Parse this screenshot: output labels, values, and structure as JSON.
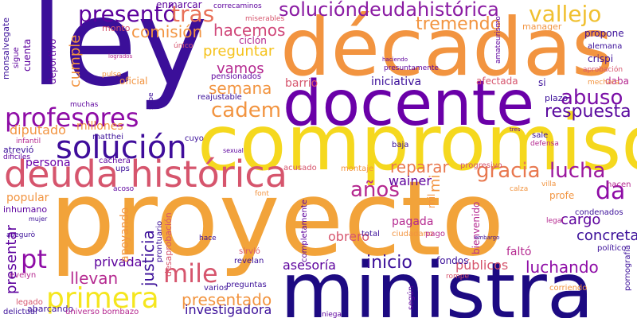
{
  "words": [
    {
      "text": "ley",
      "color": "#3b0f99",
      "size": 150,
      "rotate": 0
    },
    {
      "text": "décadas",
      "color": "#f29440",
      "size": 100,
      "rotate": 0
    },
    {
      "text": "docente",
      "color": "#6a00a8",
      "size": 78,
      "rotate": 0
    },
    {
      "text": "compromiso",
      "color": "#f5d81e",
      "size": 96,
      "rotate": 0
    },
    {
      "text": "proyecto",
      "color": "#f2a33a",
      "size": 130,
      "rotate": 0
    },
    {
      "text": "ministra",
      "color": "#1d0a82",
      "size": 96,
      "rotate": 0
    },
    {
      "text": "deuda histórica",
      "color": "#d6556d",
      "size": 46,
      "rotate": 0
    },
    {
      "text": "solución",
      "color": "#3f0d9b",
      "size": 40,
      "rotate": 0
    },
    {
      "text": "profesores",
      "color": "#8e0ca6",
      "size": 32,
      "rotate": 0
    },
    {
      "text": "presentó",
      "color": "#5c019d",
      "size": 28,
      "rotate": 0
    },
    {
      "text": "tras",
      "color": "#e87058",
      "size": 28,
      "rotate": 0
    },
    {
      "text": "solucióndeudahistórica",
      "color": "#8a1ba3",
      "size": 24,
      "rotate": 0
    },
    {
      "text": "vallejo",
      "color": "#f0c030",
      "size": 28,
      "rotate": 0
    },
    {
      "text": "tremendo",
      "color": "#f29440",
      "size": 22,
      "rotate": 0
    },
    {
      "text": "comisión",
      "color": "#f29440",
      "size": 20,
      "rotate": 0
    },
    {
      "text": "hacemos",
      "color": "#d0487a",
      "size": 20,
      "rotate": 0
    },
    {
      "text": "preguntar",
      "color": "#f5c21c",
      "size": 18,
      "rotate": 0
    },
    {
      "text": "vamos",
      "color": "#b52990",
      "size": 18,
      "rotate": 0
    },
    {
      "text": "semana",
      "color": "#f29440",
      "size": 20,
      "rotate": 0
    },
    {
      "text": "cadem",
      "color": "#f29440",
      "size": 26,
      "rotate": 0
    },
    {
      "text": "abuso",
      "color": "#7a0ea6",
      "size": 26,
      "rotate": 0
    },
    {
      "text": "respuesta",
      "color": "#5a0a9f",
      "size": 22,
      "rotate": 0
    },
    {
      "text": "lucha",
      "color": "#9c179e",
      "size": 26,
      "rotate": 0
    },
    {
      "text": "gracia",
      "color": "#e8784f",
      "size": 26,
      "rotate": 0
    },
    {
      "text": "reparar",
      "color": "#e8784f",
      "size": 20,
      "rotate": 0
    },
    {
      "text": "da",
      "color": "#8e0ca6",
      "size": 30,
      "rotate": 0
    },
    {
      "text": "años",
      "color": "#b52990",
      "size": 26,
      "rotate": 0
    },
    {
      "text": "wainer",
      "color": "#5c019d",
      "size": 16,
      "rotate": 0
    },
    {
      "text": "mile",
      "color": "#d6556d",
      "size": 32,
      "rotate": 0
    },
    {
      "text": "primera",
      "color": "#f5e61e",
      "size": 36,
      "rotate": 0
    },
    {
      "text": "pt",
      "color": "#8e0ca6",
      "size": 32,
      "rotate": 0
    },
    {
      "text": "llevan",
      "color": "#b52990",
      "size": 20,
      "rotate": 0
    },
    {
      "text": "presentado",
      "color": "#f29440",
      "size": 20,
      "rotate": 0
    },
    {
      "text": "investigadora",
      "color": "#3b0f99",
      "size": 16,
      "rotate": 0
    },
    {
      "text": "asesoría",
      "color": "#5c019d",
      "size": 16,
      "rotate": 0
    },
    {
      "text": "inicio",
      "color": "#3b0f99",
      "size": 22,
      "rotate": 0
    },
    {
      "text": "luchando",
      "color": "#8e0ca6",
      "size": 20,
      "rotate": 0
    },
    {
      "text": "públicos",
      "color": "#d6556d",
      "size": 16,
      "rotate": 0
    },
    {
      "text": "obrero",
      "color": "#d6556d",
      "size": 16,
      "rotate": 0
    },
    {
      "text": "pagada",
      "color": "#b52990",
      "size": 14,
      "rotate": 0
    },
    {
      "text": "concreta",
      "color": "#3b0f99",
      "size": 18,
      "rotate": 0
    },
    {
      "text": "cargo",
      "color": "#5c019d",
      "size": 18,
      "rotate": 0
    },
    {
      "text": "privada",
      "color": "#5c019d",
      "size": 16,
      "rotate": 0
    },
    {
      "text": "iniciativa",
      "color": "#3b0f99",
      "size": 14,
      "rotate": 0
    },
    {
      "text": "barrio",
      "color": "#d6556d",
      "size": 14,
      "rotate": 0
    },
    {
      "text": "diputado",
      "color": "#f29440",
      "size": 16,
      "rotate": 0
    },
    {
      "text": "millones",
      "color": "#f29440",
      "size": 14,
      "rotate": 0
    },
    {
      "text": "persona",
      "color": "#6a00a8",
      "size": 14,
      "rotate": 0
    },
    {
      "text": "popular",
      "color": "#f29440",
      "size": 14,
      "rotate": 0
    },
    {
      "text": "inhumano",
      "color": "#5c019d",
      "size": 11,
      "rotate": 0
    },
    {
      "text": "enmarcar",
      "color": "#5c019d",
      "size": 12,
      "rotate": 0
    },
    {
      "text": "monto",
      "color": "#d6556d",
      "size": 11,
      "rotate": 0
    },
    {
      "text": "oficial",
      "color": "#f29440",
      "size": 12,
      "rotate": 0
    },
    {
      "text": "ciclón",
      "color": "#b52990",
      "size": 12,
      "rotate": 0
    },
    {
      "text": "pensionados",
      "color": "#5c019d",
      "size": 10,
      "rotate": 0
    },
    {
      "text": "reajustable",
      "color": "#3b0f99",
      "size": 10,
      "rotate": 0
    },
    {
      "text": "matthei",
      "color": "#3b0f99",
      "size": 10,
      "rotate": 0
    },
    {
      "text": "atrevió",
      "color": "#3b0f99",
      "size": 11,
      "rotate": 0
    },
    {
      "text": "cachera",
      "color": "#5c019d",
      "size": 10,
      "rotate": 0
    },
    {
      "text": "ups",
      "color": "#3b0f99",
      "size": 10,
      "rotate": 0
    },
    {
      "text": "acusado",
      "color": "#d6556d",
      "size": 10,
      "rotate": 0
    },
    {
      "text": "montaje",
      "color": "#f29440",
      "size": 10,
      "rotate": 0
    },
    {
      "text": "progresivo",
      "color": "#d6556d",
      "size": 10,
      "rotate": 0
    },
    {
      "text": "baja",
      "color": "#3b0f99",
      "size": 10,
      "rotate": 0
    },
    {
      "text": "sale",
      "color": "#3b0f99",
      "size": 10,
      "rotate": 0
    },
    {
      "text": "defensa",
      "color": "#b52990",
      "size": 9,
      "rotate": 0
    },
    {
      "text": "plazo",
      "color": "#3b0f99",
      "size": 11,
      "rotate": 0
    },
    {
      "text": "si",
      "color": "#3b0f99",
      "size": 12,
      "rotate": 0
    },
    {
      "text": "afectada",
      "color": "#d6556d",
      "size": 12,
      "rotate": 0
    },
    {
      "text": "daba",
      "color": "#b52990",
      "size": 12,
      "rotate": 0
    },
    {
      "text": "crispi",
      "color": "#3b0f99",
      "size": 12,
      "rotate": 0
    },
    {
      "text": "alemana",
      "color": "#3b0f99",
      "size": 10,
      "rotate": 0
    },
    {
      "text": "propone",
      "color": "#3b0f99",
      "size": 12,
      "rotate": 0
    },
    {
      "text": "manager",
      "color": "#f29440",
      "size": 11,
      "rotate": 0
    },
    {
      "text": "hacen",
      "color": "#b52990",
      "size": 10,
      "rotate": 0
    },
    {
      "text": "profe",
      "color": "#f29440",
      "size": 12,
      "rotate": 0
    },
    {
      "text": "condenados",
      "color": "#3b0f99",
      "size": 10,
      "rotate": 0
    },
    {
      "text": "político",
      "color": "#3b0f99",
      "size": 10,
      "rotate": 0
    },
    {
      "text": "faltó",
      "color": "#b52990",
      "size": 14,
      "rotate": 0
    },
    {
      "text": "ciudadano",
      "color": "#f29440",
      "size": 10,
      "rotate": 0
    },
    {
      "text": "pago",
      "color": "#b52990",
      "size": 10,
      "rotate": 0
    },
    {
      "text": "legal",
      "color": "#b52990",
      "size": 9,
      "rotate": 0
    },
    {
      "text": "villa",
      "color": "#f29440",
      "size": 9,
      "rotate": 0
    },
    {
      "text": "calza",
      "color": "#f29440",
      "size": 9,
      "rotate": 0
    },
    {
      "text": "corriendo",
      "color": "#f29440",
      "size": 10,
      "rotate": 0
    },
    {
      "text": "mechera",
      "color": "#f29440",
      "size": 9,
      "rotate": 0
    },
    {
      "text": "aprobación",
      "color": "#d6556d",
      "size": 9,
      "rotate": 0
    },
    {
      "text": "único",
      "color": "#d6556d",
      "size": 9,
      "rotate": 0
    },
    {
      "text": "pulso",
      "color": "#f29440",
      "size": 9,
      "rotate": 0
    },
    {
      "text": "correcaminos",
      "color": "#5c019d",
      "size": 9,
      "rotate": 0
    },
    {
      "text": "miserables",
      "color": "#d6556d",
      "size": 9,
      "rotate": 0
    },
    {
      "text": "presuntamente",
      "color": "#5c019d",
      "size": 9,
      "rotate": 0
    },
    {
      "text": "fondos",
      "color": "#3b0f99",
      "size": 12,
      "rotate": 0
    },
    {
      "text": "rompe",
      "color": "#d6556d",
      "size": 9,
      "rotate": 0
    },
    {
      "text": "muchas",
      "color": "#5c019d",
      "size": 9,
      "rotate": 0
    },
    {
      "text": "infantil",
      "color": "#b52990",
      "size": 9,
      "rotate": 0
    },
    {
      "text": "acoso",
      "color": "#5c019d",
      "size": 9,
      "rotate": 0
    },
    {
      "text": "font",
      "color": "#f29440",
      "size": 9,
      "rotate": 0
    },
    {
      "text": "hace",
      "color": "#3b0f99",
      "size": 9,
      "rotate": 0
    },
    {
      "text": "revelan",
      "color": "#3b0f99",
      "size": 10,
      "rotate": 0
    },
    {
      "text": "sirvió",
      "color": "#d6556d",
      "size": 10,
      "rotate": 0
    },
    {
      "text": "total",
      "color": "#3b0f99",
      "size": 10,
      "rotate": 0
    },
    {
      "text": "preguntas",
      "color": "#3b0f99",
      "size": 10,
      "rotate": 0
    },
    {
      "text": "varios",
      "color": "#3b0f99",
      "size": 10,
      "rotate": 0
    },
    {
      "text": "abarcando",
      "color": "#3b0f99",
      "size": 11,
      "rotate": 0
    },
    {
      "text": "evelyn",
      "color": "#b52990",
      "size": 10,
      "rotate": 0
    },
    {
      "text": "asegurò",
      "color": "#3b0f99",
      "size": 9,
      "rotate": 0
    },
    {
      "text": "mujer",
      "color": "#3b0f99",
      "size": 8,
      "rotate": 0
    },
    {
      "text": "legado",
      "color": "#d6556d",
      "size": 10,
      "rotate": 0
    },
    {
      "text": "delictual",
      "color": "#3b0f99",
      "size": 10,
      "rotate": 0
    },
    {
      "text": "universo bombazo",
      "color": "#b52990",
      "size": 10,
      "rotate": 0
    },
    {
      "text": "sexual",
      "color": "#5c019d",
      "size": 8,
      "rotate": 0
    },
    {
      "text": "presentar",
      "color": "#5c019d",
      "size": 18,
      "rotate": -90
    },
    {
      "text": "justicia",
      "color": "#3b0f99",
      "size": 20,
      "rotate": -90
    },
    {
      "text": "apoyando",
      "color": "#f29440",
      "size": 14,
      "rotate": -90
    },
    {
      "text": "desaprobación",
      "color": "#d6556d",
      "size": 11,
      "rotate": -90
    },
    {
      "text": "prontuario",
      "color": "#3b0f99",
      "size": 10,
      "rotate": -90
    },
    {
      "text": "cumple",
      "color": "#f29440",
      "size": 18,
      "rotate": -90
    },
    {
      "text": "deportivo",
      "color": "#5c019d",
      "size": 12,
      "rotate": -90
    },
    {
      "text": "cuenta",
      "color": "#5c019d",
      "size": 12,
      "rotate": -90
    },
    {
      "text": "sigue",
      "color": "#5c019d",
      "size": 10,
      "rotate": -90
    },
    {
      "text": "monsalvegate",
      "color": "#3b0f99",
      "size": 11,
      "rotate": -90
    },
    {
      "text": "completamente",
      "color": "#5c019d",
      "size": 10,
      "rotate": -90
    },
    {
      "text": "bienvenido",
      "color": "#b52990",
      "size": 12,
      "rotate": -90
    },
    {
      "text": "mil",
      "color": "#f29440",
      "size": 12,
      "rotate": -90
    },
    {
      "text": "según",
      "color": "#5c019d",
      "size": 10,
      "rotate": -90
    },
    {
      "text": "amateurismo",
      "color": "#5c019d",
      "size": 9,
      "rotate": -90
    },
    {
      "text": "pornografía",
      "color": "#3b0f99",
      "size": 10,
      "rotate": -90
    },
    {
      "text": "sube",
      "color": "#3b0f99",
      "size": 9,
      "rotate": -90
    },
    {
      "text": "mi",
      "color": "#f29440",
      "size": 18,
      "rotate": -90
    },
    {
      "text": "cuyo",
      "color": "#3b0f99",
      "size": 10,
      "rotate": 0
    },
    {
      "text": "dificiles",
      "color": "#5c019d",
      "size": 9,
      "rotate": 0
    },
    {
      "text": "niega",
      "color": "#5c019d",
      "size": 9,
      "rotate": 0
    },
    {
      "text": "tres",
      "color": "#5c019d",
      "size": 7,
      "rotate": 0
    },
    {
      "text": "haciendo",
      "color": "#5c019d",
      "size": 7,
      "rotate": 0
    },
    {
      "text": "logrados",
      "color": "#b52990",
      "size": 7,
      "rotate": 0
    },
    {
      "text": "embargo",
      "color": "#3b0f99",
      "size": 7,
      "rotate": 0
    }
  ]
}
